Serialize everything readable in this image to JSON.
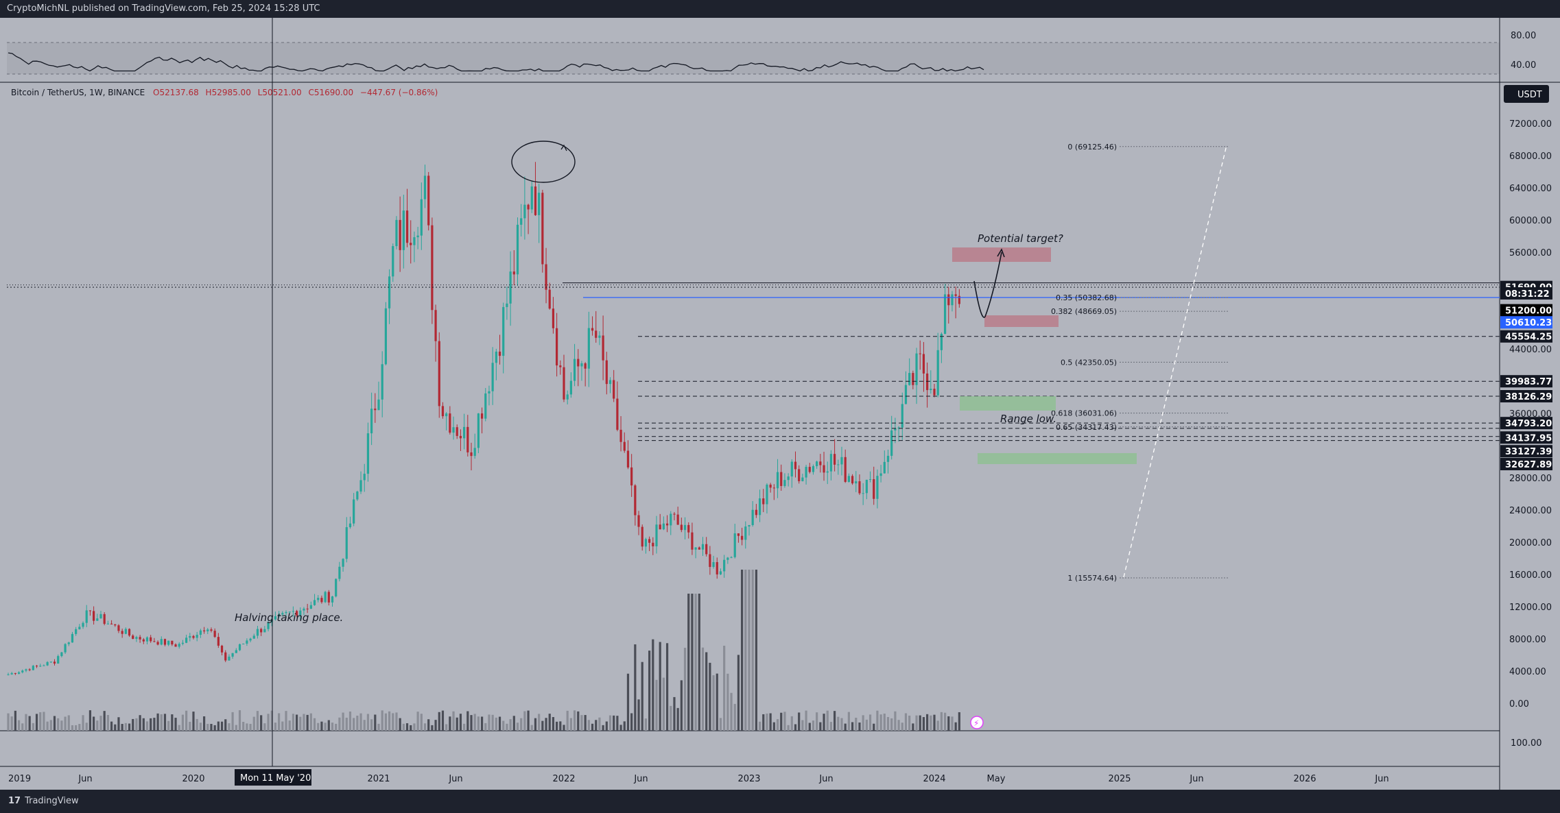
{
  "header": {
    "publisher_text": "CryptoMichNL published on TradingView.com, Feb 25, 2024 15:28 UTC"
  },
  "legend": {
    "symbol": "Bitcoin / TetherUS, 1W, BINANCE",
    "open": "O52137.68",
    "high": "H52985.00",
    "low": "L50521.00",
    "close": "C51690.00",
    "change": "−447.67 (−0.86%)"
  },
  "currency_button": "USDT",
  "rsi_axis": [
    "80.00",
    "40.00"
  ],
  "price_axis": [
    "72000.00",
    "68000.00",
    "64000.00",
    "60000.00",
    "56000.00",
    "44000.00",
    "36000.00",
    "28000.00",
    "24000.00",
    "20000.00",
    "16000.00",
    "12000.00",
    "8000.00",
    "4000.00",
    "0.00"
  ],
  "volume_axis": [
    "100.00"
  ],
  "price_tags": [
    {
      "text": "51690.00",
      "bg": "#131722",
      "fg": "#ffffff",
      "price": 51690
    },
    {
      "text": "08:31:22",
      "bg": "#131722",
      "fg": "#ffffff",
      "price": 50900
    },
    {
      "text": "51200.00",
      "bg": "#000000",
      "fg": "#ffffff",
      "price": 48800
    },
    {
      "text": "50610.23",
      "bg": "#2962ff",
      "fg": "#ffffff",
      "price": 47300
    },
    {
      "text": "45554.25",
      "bg": "#131722",
      "fg": "#ffffff",
      "price": 45554.25
    },
    {
      "text": "39983.77",
      "bg": "#131722",
      "fg": "#ffffff",
      "price": 39983.77
    },
    {
      "text": "38126.29",
      "bg": "#131722",
      "fg": "#ffffff",
      "price": 38126.29
    },
    {
      "text": "34793.20",
      "bg": "#131722",
      "fg": "#ffffff",
      "price": 34793.2
    },
    {
      "text": "34137.95",
      "bg": "#131722",
      "fg": "#ffffff",
      "price": 33000
    },
    {
      "text": "33127.39",
      "bg": "#131722",
      "fg": "#ffffff",
      "price": 31300
    },
    {
      "text": "32627.89",
      "bg": "#131722",
      "fg": "#ffffff",
      "price": 29700
    }
  ],
  "x_axis": [
    "2019",
    "Jun",
    "2020",
    "2021",
    "Jun",
    "2022",
    "Jun",
    "2023",
    "Jun",
    "2024",
    "May",
    "2025",
    "Jun",
    "2026",
    "Jun"
  ],
  "crosshair_label": "Mon 11 May '20",
  "fib_levels": [
    {
      "label": "0 (69125.46)",
      "price": 69125.46
    },
    {
      "label": "0.35 (50382.68)",
      "price": 50382.68
    },
    {
      "label": "0.382 (48669.05)",
      "price": 48669.05
    },
    {
      "label": "0.5 (42350.05)",
      "price": 42350.05
    },
    {
      "label": "0.618 (36031.06)",
      "price": 36031.06
    },
    {
      "label": "0.65 (34317.43)",
      "price": 34317.43
    },
    {
      "label": "1 (15574.64)",
      "price": 15574.64
    }
  ],
  "annotations": {
    "halving": "Halving taking place.",
    "target": "Potential target?",
    "range_low": "Range low."
  },
  "footer": {
    "brand": "TradingView"
  },
  "colors": {
    "up": "#26a69a",
    "down": "#b22833",
    "background": "#b2b5be",
    "blue_line": "#2962ff"
  },
  "chart_data": {
    "type": "candlestick",
    "symbol": "BTCUSDT",
    "timeframe": "1W",
    "ylim": [
      0,
      74000
    ],
    "weekly_close_approx": [
      [
        "2019-01",
        3600
      ],
      [
        "2019-04",
        5200
      ],
      [
        "2019-06",
        11000
      ],
      [
        "2019-07",
        10500
      ],
      [
        "2019-09",
        8300
      ],
      [
        "2019-12",
        7200
      ],
      [
        "2020-02",
        9800
      ],
      [
        "2020-03",
        5300
      ],
      [
        "2020-05",
        8800
      ],
      [
        "2020-07",
        11000
      ],
      [
        "2020-10",
        13500
      ],
      [
        "2020-12",
        29000
      ],
      [
        "2021-01",
        40000
      ],
      [
        "2021-02",
        57000
      ],
      [
        "2021-04",
        63000
      ],
      [
        "2021-05",
        37000
      ],
      [
        "2021-07",
        32000
      ],
      [
        "2021-09",
        47000
      ],
      [
        "2021-11",
        66000
      ],
      [
        "2022-01",
        38000
      ],
      [
        "2022-03",
        46000
      ],
      [
        "2022-05",
        30000
      ],
      [
        "2022-06",
        19000
      ],
      [
        "2022-08",
        23000
      ],
      [
        "2022-11",
        16500
      ],
      [
        "2023-01",
        23000
      ],
      [
        "2023-03",
        28000
      ],
      [
        "2023-06",
        30500
      ],
      [
        "2023-09",
        26500
      ],
      [
        "2023-11",
        37000
      ],
      [
        "2023-12",
        42000
      ],
      [
        "2024-01",
        40000
      ],
      [
        "2024-02",
        51690
      ]
    ],
    "current": {
      "open": 52137.68,
      "high": 52985.0,
      "low": 50521.0,
      "close": 51690.0
    },
    "indicators": [
      "RSI",
      "Volume",
      "Fibonacci retracement"
    ]
  }
}
